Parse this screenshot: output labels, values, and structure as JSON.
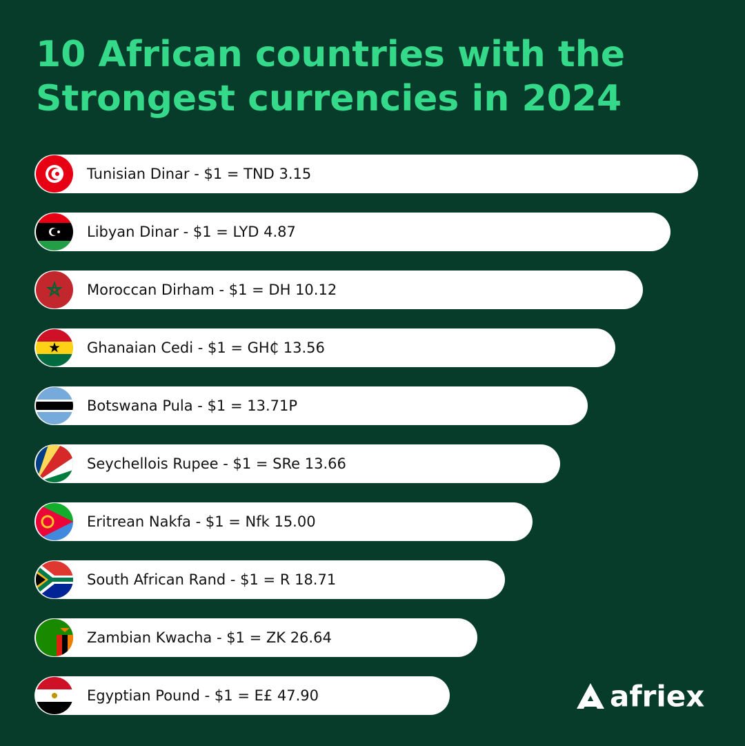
{
  "header": {
    "title_lines": [
      "10 African countries with the",
      "Strongest currencies in 2024"
    ]
  },
  "items": [
    {
      "label": "Tunisian Dinar - $1 = TND 3.15"
    },
    {
      "label": "Libyan Dinar - $1 = LYD 4.87"
    },
    {
      "label": "Moroccan Dirham - $1 = DH 10.12"
    },
    {
      "label": "Ghanaian Cedi - $1 = GH₵ 13.56"
    },
    {
      "label": "Botswana Pula - $1 = 13.71P"
    },
    {
      "label": "Seychellois Rupee - $1 = SRe 13.66"
    },
    {
      "label": "Eritrean Nakfa - $1 = Nfk 15.00"
    },
    {
      "label": "South African Rand - $1 = R 18.71"
    },
    {
      "label": "Zambian Kwacha - $1 = ZK 26.64"
    },
    {
      "label": "Egyptian Pound - $1 = E£ 47.90"
    }
  ],
  "logo": {
    "text": "afriex"
  }
}
